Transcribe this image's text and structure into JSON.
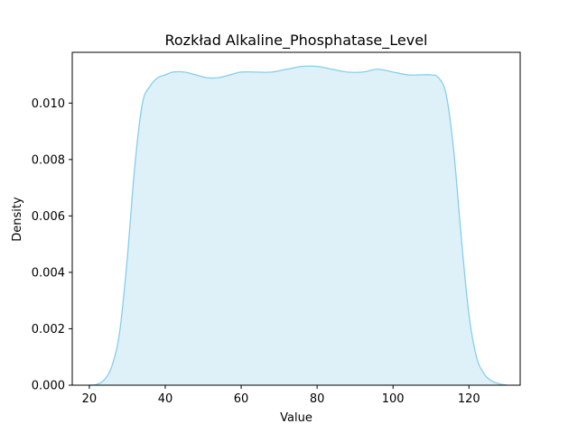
{
  "chart_data": {
    "type": "area",
    "title": "Rozkład Alkaline_Phosphatase_Level",
    "xlabel": "Value",
    "ylabel": "Density",
    "xlim": [
      15.5,
      133.5
    ],
    "ylim": [
      0.0,
      0.0118
    ],
    "xticks": [
      20,
      40,
      60,
      80,
      100,
      120
    ],
    "yticks": [
      0.0,
      0.002,
      0.004,
      0.006,
      0.008,
      0.01
    ],
    "ytick_labels": [
      "0.000",
      "0.002",
      "0.004",
      "0.006",
      "0.008",
      "0.010"
    ],
    "grid": false,
    "colors": {
      "line": "#87CEEB",
      "fill": "#87CEEB",
      "fill_opacity": 0.28
    },
    "series": [
      {
        "x": [
          20.0,
          22.0,
          24.0,
          26.0,
          28.0,
          30.0,
          32.0,
          34.0,
          36.0,
          38.0,
          40.0,
          42.0,
          45.0,
          48.0,
          51.0,
          54.0,
          57.0,
          60.0,
          64.0,
          68.0,
          72.0,
          76.0,
          80.0,
          84.0,
          88.0,
          92.0,
          96.0,
          100.0,
          104.0,
          107.0,
          110.0,
          112.0,
          114.0,
          116.0,
          118.0,
          120.0,
          122.0,
          124.0,
          126.0,
          128.0,
          130.0
        ],
        "y": [
          0.0,
          3e-05,
          0.0002,
          0.0007,
          0.0019,
          0.0045,
          0.0078,
          0.01,
          0.0106,
          0.0109,
          0.011,
          0.0111,
          0.0111,
          0.011,
          0.0109,
          0.0109,
          0.011,
          0.0111,
          0.0111,
          0.0111,
          0.0112,
          0.0113,
          0.0113,
          0.0112,
          0.0111,
          0.0111,
          0.0112,
          0.0111,
          0.011,
          0.011,
          0.011,
          0.0109,
          0.0103,
          0.0083,
          0.0052,
          0.0025,
          0.001,
          0.0004,
          0.00015,
          5e-05,
          0.0
        ]
      }
    ]
  }
}
